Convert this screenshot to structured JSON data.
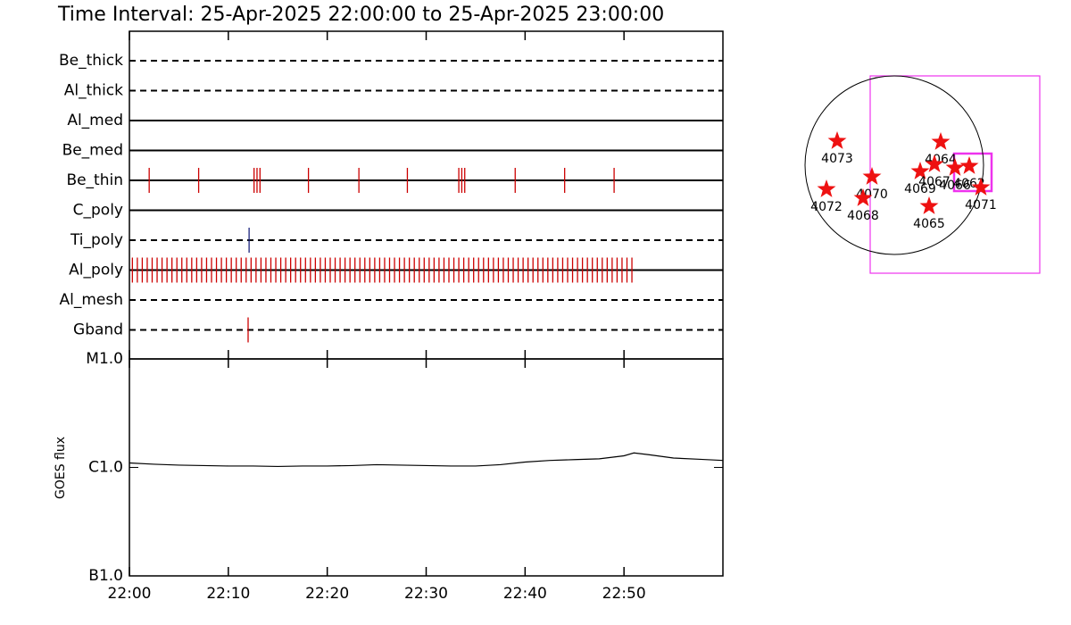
{
  "chart_data": [
    {
      "type": "timeline",
      "title": "Time Interval: 25-Apr-2025 22:00:00 to 25-Apr-2025 23:00:00",
      "rows": [
        {
          "name": "Be_thick",
          "style": "dashed",
          "color": "#cc0000",
          "events": []
        },
        {
          "name": "Al_thick",
          "style": "dashed",
          "color": "#cc0000",
          "events": []
        },
        {
          "name": "Al_med",
          "style": "solid",
          "color": "#cc0000",
          "events": []
        },
        {
          "name": "Be_med",
          "style": "solid",
          "color": "#cc0000",
          "events": []
        },
        {
          "name": "Be_thin",
          "style": "solid",
          "color": "#cc0000",
          "events": [
            2.0,
            7.0,
            12.6,
            12.9,
            13.2,
            18.1,
            23.2,
            28.1,
            33.3,
            33.6,
            33.9,
            39.0,
            44.0,
            49.0
          ]
        },
        {
          "name": "C_poly",
          "style": "solid",
          "color": "#cc0000",
          "events": []
        },
        {
          "name": "Ti_poly",
          "style": "dashed",
          "color": "#1a237e",
          "events": [
            12.1
          ]
        },
        {
          "name": "Al_poly",
          "style": "solid",
          "color": "#cc0000",
          "events": [
            0.3,
            0.8,
            1.3,
            1.8,
            2.3,
            2.8,
            3.3,
            3.8,
            4.3,
            4.8,
            5.3,
            5.8,
            6.3,
            6.8,
            7.3,
            7.8,
            8.3,
            8.8,
            9.3,
            9.8,
            10.3,
            10.8,
            11.3,
            11.8,
            12.3,
            12.8,
            13.3,
            13.8,
            14.3,
            14.8,
            15.3,
            15.8,
            16.3,
            16.8,
            17.3,
            17.8,
            18.3,
            18.8,
            19.3,
            19.8,
            20.3,
            20.8,
            21.3,
            21.8,
            22.3,
            22.8,
            23.3,
            23.8,
            24.3,
            24.8,
            25.3,
            25.8,
            26.3,
            26.8,
            27.3,
            27.8,
            28.3,
            28.8,
            29.3,
            29.8,
            30.3,
            30.8,
            31.3,
            31.8,
            32.3,
            32.8,
            33.3,
            33.8,
            34.3,
            34.8,
            35.3,
            35.8,
            36.3,
            36.8,
            37.3,
            37.8,
            38.3,
            38.8,
            39.3,
            39.8,
            40.3,
            40.8,
            41.3,
            41.8,
            42.3,
            42.8,
            43.3,
            43.8,
            44.3,
            44.8,
            45.3,
            45.8,
            46.3,
            46.8,
            47.3,
            47.8,
            48.3,
            48.8,
            49.3,
            49.8,
            50.3,
            50.8
          ]
        },
        {
          "name": "Al_mesh",
          "style": "dashed",
          "color": "#cc0000",
          "events": []
        },
        {
          "name": "Gband",
          "style": "dashed",
          "color": "#cc0000",
          "events": [
            12.0
          ]
        }
      ]
    },
    {
      "type": "line",
      "y_label": "GOES flux",
      "log_scale": true,
      "color": "#000000",
      "x": [
        0,
        2.5,
        5,
        7.5,
        10,
        12.5,
        15,
        17.5,
        20,
        22.5,
        25,
        27.5,
        30,
        32.5,
        35,
        37.5,
        40,
        42.5,
        45,
        47.5,
        50,
        51,
        52.5,
        55,
        57.5,
        60
      ],
      "values": [
        1.1e-06,
        1.07e-06,
        1.05e-06,
        1.04e-06,
        1.03e-06,
        1.03e-06,
        1.02e-06,
        1.03e-06,
        1.03e-06,
        1.04e-06,
        1.06e-06,
        1.05e-06,
        1.04e-06,
        1.03e-06,
        1.03e-06,
        1.06e-06,
        1.12e-06,
        1.16e-06,
        1.18e-06,
        1.2e-06,
        1.28e-06,
        1.36e-06,
        1.31e-06,
        1.22e-06,
        1.19e-06,
        1.16e-06
      ],
      "xlim": [
        0,
        60
      ],
      "xticks": [
        {
          "value": 0,
          "label": "22:00"
        },
        {
          "value": 10,
          "label": "22:10"
        },
        {
          "value": 20,
          "label": "22:20"
        },
        {
          "value": 30,
          "label": "22:30"
        },
        {
          "value": 40,
          "label": "22:40"
        },
        {
          "value": 50,
          "label": "22:50"
        }
      ],
      "ylim": [
        1e-07,
        1e-05
      ],
      "yticks": [
        {
          "value": 1e-07,
          "label": "B1.0"
        },
        {
          "value": 1e-06,
          "label": "C1.0"
        },
        {
          "value": 1e-05,
          "label": "M1.0"
        }
      ]
    },
    {
      "type": "scatter",
      "color": "#ee1111",
      "labels": [
        "4073",
        "4072",
        "4070",
        "4068",
        "4064",
        "4069",
        "4067",
        "4066",
        "4062",
        "4071",
        "4065"
      ],
      "x": [
        -0.64,
        -0.76,
        -0.25,
        -0.35,
        0.52,
        0.29,
        0.45,
        0.68,
        0.84,
        0.97,
        0.39
      ],
      "y": [
        0.27,
        -0.27,
        -0.13,
        -0.37,
        0.26,
        -0.07,
        0.01,
        -0.03,
        -0.01,
        -0.25,
        -0.46
      ],
      "xlim": [
        -1,
        1
      ],
      "ylim": [
        -1,
        1
      ]
    }
  ]
}
